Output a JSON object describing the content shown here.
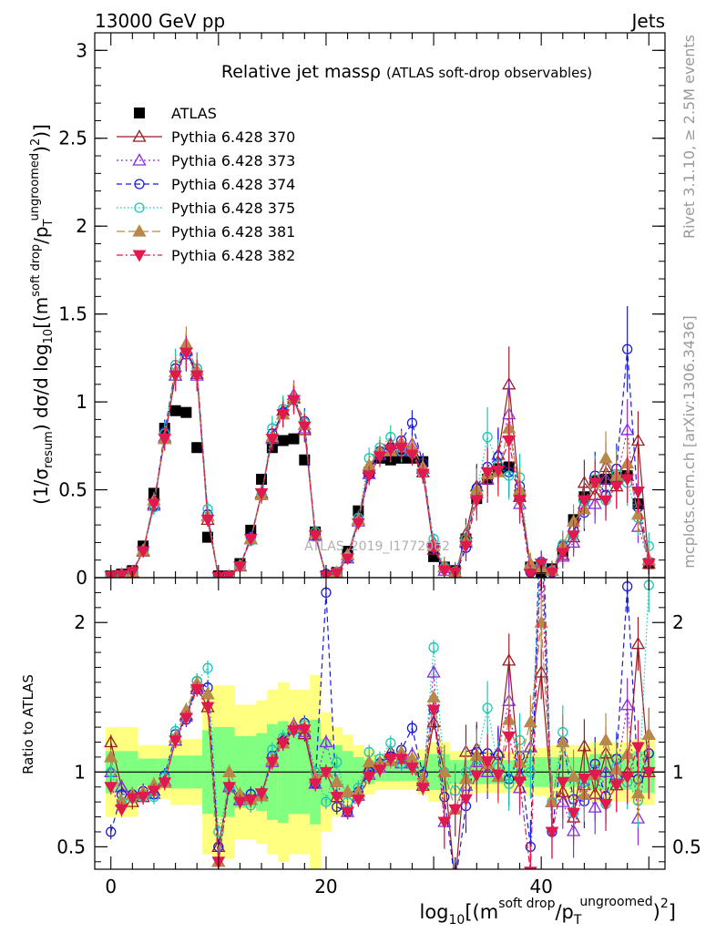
{
  "header": {
    "left": "13000 GeV pp",
    "right": "Jets"
  },
  "side": {
    "rivet": "Rivet 3.1.10, ≥ 2.5M events",
    "mcplots": "mcplots.cern.ch [arXiv:1306.3436]"
  },
  "watermark": "ATLAS_2019_I1772062",
  "title_main": "Relative jet massρ",
  "title_sub": "(ATLAS soft-drop observables)",
  "ylabel": "(1/σ_resum) dσ/d log10[(m^{soft drop}/p_T^{ungroomed})^2]",
  "xlabel": "log10[(m^{soft drop}/p_T^{ungroomed})^2]",
  "ratio_ylabel": "Ratio to ATLAS",
  "colors": {
    "ATLAS": "#000000",
    "370": "#9b1b22",
    "373": "#8a2be2",
    "374": "#1a1adb",
    "375": "#19c8b4",
    "381": "#b8874a",
    "382": "#e0194f",
    "band_outer": "#ffff80",
    "band_inner": "#80ff80"
  },
  "chart_data": {
    "type": "line",
    "x": [
      0,
      1,
      2,
      3,
      4,
      5,
      6,
      7,
      8,
      9,
      10,
      11,
      12,
      13,
      14,
      15,
      16,
      17,
      18,
      19,
      20,
      21,
      22,
      23,
      24,
      25,
      26,
      27,
      28,
      29,
      30,
      31,
      32,
      33,
      34,
      35,
      36,
      37,
      38,
      39,
      40,
      41,
      42,
      43,
      44,
      45,
      46,
      47,
      48,
      49,
      50
    ],
    "xlim": [
      -1.5,
      51.5
    ],
    "ylim_main": [
      0,
      3.1
    ],
    "ylim_ratio": [
      0.35,
      2.3
    ],
    "x_ticks": [
      0,
      20,
      40
    ],
    "y_ticks_main": [
      0,
      0.5,
      1,
      1.5,
      2,
      2.5,
      3
    ],
    "y_tick_labels_main": [
      "0",
      "0.5",
      "1",
      "1.5",
      "2",
      "2.5",
      "3"
    ],
    "y_ticks_ratio": [
      0.5,
      1,
      2
    ],
    "y_tick_labels_ratio": [
      "0.5",
      "1",
      "2"
    ],
    "legend_position": "top-left",
    "series": [
      {
        "name": "ATLAS",
        "key": "ATLAS",
        "marker": "square",
        "dash": "none",
        "values": [
          0.01,
          0.02,
          0.04,
          0.18,
          0.48,
          0.85,
          0.95,
          0.94,
          0.74,
          0.23,
          0.01,
          0.01,
          0.08,
          0.27,
          0.56,
          0.74,
          0.78,
          0.79,
          0.67,
          0.26,
          0.01,
          0.03,
          0.15,
          0.38,
          0.6,
          0.68,
          0.67,
          0.68,
          0.68,
          0.66,
          0.12,
          0.06,
          0.04,
          0.22,
          0.45,
          0.56,
          0.62,
          0.63,
          0.47,
          0.06,
          0.03,
          0.05,
          0.15,
          0.33,
          0.46,
          0.55,
          0.56,
          0.57,
          0.58,
          0.42,
          0.08
        ]
      },
      {
        "name": "Pythia 6.428 370",
        "key": "370",
        "marker": "triangle-up-open",
        "dash": "none",
        "values": [
          0.012,
          0.018,
          0.032,
          0.15,
          0.42,
          0.79,
          1.15,
          1.3,
          1.16,
          0.33,
          0.005,
          0.009,
          0.065,
          0.22,
          0.48,
          0.8,
          0.95,
          1.02,
          0.84,
          0.24,
          0.01,
          0.025,
          0.13,
          0.33,
          0.62,
          0.72,
          0.76,
          0.74,
          0.72,
          0.6,
          0.16,
          0.06,
          0.01,
          0.25,
          0.52,
          0.56,
          0.7,
          1.1,
          0.46,
          0.07,
          0.05,
          0.04,
          0.13,
          0.23,
          0.54,
          0.47,
          0.63,
          0.52,
          0.58,
          0.78,
          0.08
        ]
      },
      {
        "name": "Pythia 6.428 373",
        "key": "373",
        "marker": "triangle-up-open",
        "dash": "dot",
        "values": [
          0.01,
          0.018,
          0.034,
          0.155,
          0.41,
          0.8,
          1.15,
          1.29,
          1.15,
          0.35,
          0.004,
          0.009,
          0.065,
          0.22,
          0.47,
          0.79,
          0.93,
          1.04,
          0.85,
          0.24,
          0.012,
          0.028,
          0.11,
          0.32,
          0.59,
          0.7,
          0.72,
          0.72,
          0.76,
          0.62,
          0.2,
          0.04,
          0.03,
          0.2,
          0.48,
          0.56,
          0.7,
          0.93,
          0.42,
          0.07,
          0.07,
          0.04,
          0.12,
          0.2,
          0.42,
          0.42,
          0.56,
          0.56,
          0.84,
          0.29,
          0.1
        ]
      },
      {
        "name": "Pythia 6.428 374",
        "key": "374",
        "marker": "circle-open",
        "dash": "dash",
        "values": [
          0.006,
          0.017,
          0.034,
          0.157,
          0.408,
          0.83,
          1.19,
          1.27,
          1.19,
          0.36,
          0.005,
          0.009,
          0.067,
          0.23,
          0.47,
          0.82,
          0.94,
          1.02,
          0.89,
          0.24,
          0.022,
          0.023,
          0.11,
          0.33,
          0.6,
          0.72,
          0.74,
          0.78,
          0.88,
          0.65,
          0.17,
          0.05,
          0.01,
          0.17,
          0.51,
          0.63,
          0.69,
          0.6,
          0.52,
          0.03,
          0.09,
          0.03,
          0.18,
          0.27,
          0.37,
          0.58,
          0.47,
          0.62,
          1.3,
          0.4,
          0.09
        ]
      },
      {
        "name": "Pythia 6.428 375",
        "key": "375",
        "marker": "circle-open",
        "dash": "dotted",
        "values": [
          0.01,
          0.016,
          0.033,
          0.15,
          0.4,
          0.82,
          1.21,
          1.29,
          1.19,
          0.39,
          0.006,
          0.009,
          0.065,
          0.21,
          0.47,
          0.85,
          0.96,
          1.01,
          0.88,
          0.26,
          0.008,
          0.032,
          0.12,
          0.34,
          0.68,
          0.74,
          0.8,
          0.72,
          0.71,
          0.6,
          0.22,
          0.06,
          0.035,
          0.22,
          0.49,
          0.8,
          0.64,
          0.58,
          0.57,
          0.06,
          0.08,
          0.04,
          0.19,
          0.24,
          0.43,
          0.56,
          0.44,
          0.59,
          0.54,
          0.34,
          0.18
        ]
      },
      {
        "name": "Pythia 6.428 381",
        "key": "381",
        "marker": "triangle-up-filled",
        "dash": "longdash",
        "values": [
          0.011,
          0.016,
          0.034,
          0.155,
          0.44,
          0.79,
          1.17,
          1.33,
          1.18,
          0.35,
          0.004,
          0.01,
          0.068,
          0.22,
          0.47,
          0.8,
          0.93,
          1.03,
          0.87,
          0.25,
          0.01,
          0.028,
          0.13,
          0.33,
          0.64,
          0.72,
          0.72,
          0.77,
          0.74,
          0.63,
          0.18,
          0.06,
          0.03,
          0.21,
          0.5,
          0.59,
          0.6,
          0.85,
          0.5,
          0.08,
          0.06,
          0.04,
          0.18,
          0.32,
          0.39,
          0.54,
          0.68,
          0.58,
          0.65,
          0.36,
          0.1
        ]
      },
      {
        "name": "Pythia 6.428 382",
        "key": "382",
        "marker": "triangle-down-filled",
        "dash": "dashdot",
        "values": [
          0.009,
          0.015,
          0.033,
          0.15,
          0.42,
          0.79,
          1.15,
          1.28,
          1.15,
          0.33,
          0.004,
          0.009,
          0.064,
          0.22,
          0.48,
          0.79,
          0.93,
          1.01,
          0.86,
          0.24,
          0.01,
          0.025,
          0.11,
          0.31,
          0.58,
          0.69,
          0.73,
          0.74,
          0.7,
          0.59,
          0.17,
          0.04,
          0.03,
          0.18,
          0.44,
          0.6,
          0.61,
          0.78,
          0.44,
          0.02,
          0.08,
          0.03,
          0.14,
          0.24,
          0.44,
          0.54,
          0.44,
          0.52,
          0.56,
          0.49,
          0.08
        ]
      }
    ],
    "band_inner_halfwidth": [
      0.14,
      0.14,
      0.14,
      0.09,
      0.09,
      0.09,
      0.11,
      0.11,
      0.11,
      0.28,
      0.3,
      0.3,
      0.24,
      0.24,
      0.26,
      0.32,
      0.34,
      0.28,
      0.28,
      0.35,
      0.22,
      0.18,
      0.14,
      0.1,
      0.08,
      0.06,
      0.06,
      0.06,
      0.06,
      0.08,
      0.12,
      0.12,
      0.08,
      0.08,
      0.08,
      0.08,
      0.08,
      0.08,
      0.08,
      0.1,
      0.1,
      0.1,
      0.1,
      0.1,
      0.1,
      0.12,
      0.12,
      0.12,
      0.12,
      0.14,
      0.14
    ],
    "band_outer_halfwidth": [
      0.3,
      0.3,
      0.3,
      0.18,
      0.18,
      0.18,
      0.22,
      0.22,
      0.22,
      0.55,
      0.58,
      0.58,
      0.45,
      0.45,
      0.48,
      0.55,
      0.6,
      0.55,
      0.55,
      0.65,
      0.4,
      0.3,
      0.25,
      0.18,
      0.15,
      0.12,
      0.12,
      0.12,
      0.12,
      0.15,
      0.2,
      0.2,
      0.14,
      0.14,
      0.14,
      0.14,
      0.14,
      0.14,
      0.14,
      0.16,
      0.16,
      0.18,
      0.18,
      0.18,
      0.18,
      0.2,
      0.2,
      0.2,
      0.2,
      0.22,
      0.22
    ]
  }
}
